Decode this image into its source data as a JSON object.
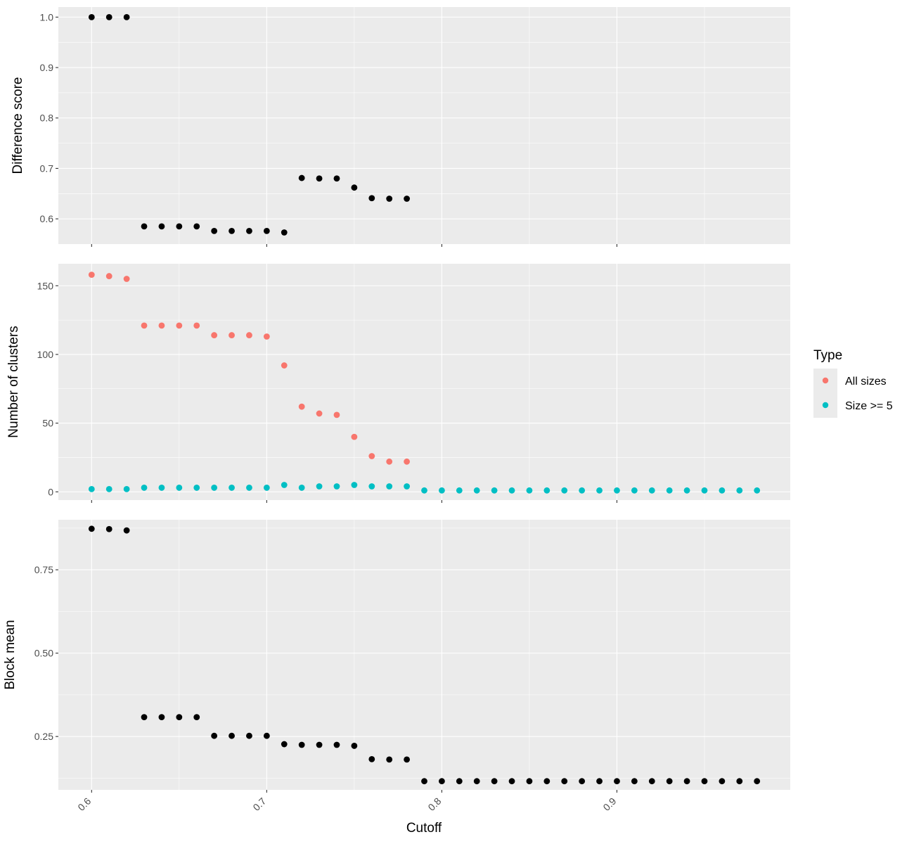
{
  "chart_data": [
    {
      "type": "scatter",
      "panel": "top",
      "ylabel": "Difference score",
      "ylim": [
        0.55,
        1.02
      ],
      "yticks": [
        "0.6",
        "0.7",
        "0.8",
        "0.9",
        "1.0"
      ],
      "grid": true,
      "series": [
        {
          "color": "#000000",
          "x": [
            0.6,
            0.61,
            0.62,
            0.63,
            0.64,
            0.65,
            0.66,
            0.67,
            0.68,
            0.69,
            0.7,
            0.71,
            0.72,
            0.73,
            0.74,
            0.75,
            0.76,
            0.77,
            0.78
          ],
          "y": [
            1.0,
            1.0,
            1.0,
            0.585,
            0.585,
            0.585,
            0.585,
            0.576,
            0.576,
            0.576,
            0.576,
            0.573,
            0.681,
            0.68,
            0.68,
            0.662,
            0.641,
            0.64,
            0.64
          ]
        }
      ]
    },
    {
      "type": "scatter",
      "panel": "middle",
      "ylabel": "Number of clusters",
      "ylim": [
        -6,
        166
      ],
      "yticks": [
        "0",
        "50",
        "100",
        "150"
      ],
      "grid": true,
      "series": [
        {
          "name": "All sizes",
          "color": "#F8766D",
          "x": [
            0.6,
            0.61,
            0.62,
            0.63,
            0.64,
            0.65,
            0.66,
            0.67,
            0.68,
            0.69,
            0.7,
            0.71,
            0.72,
            0.73,
            0.74,
            0.75,
            0.76,
            0.77,
            0.78
          ],
          "y": [
            158,
            157,
            155,
            121,
            121,
            121,
            121,
            114,
            114,
            114,
            113,
            92,
            62,
            57,
            56,
            40,
            26,
            22,
            22
          ]
        },
        {
          "name": "Size >= 5",
          "color": "#00BFC4",
          "x": [
            0.6,
            0.61,
            0.62,
            0.63,
            0.64,
            0.65,
            0.66,
            0.67,
            0.68,
            0.69,
            0.7,
            0.71,
            0.72,
            0.73,
            0.74,
            0.75,
            0.76,
            0.77,
            0.78,
            0.79,
            0.8,
            0.81,
            0.82,
            0.83,
            0.84,
            0.85,
            0.86,
            0.87,
            0.88,
            0.89,
            0.9,
            0.91,
            0.92,
            0.93,
            0.94,
            0.95,
            0.96,
            0.97,
            0.98
          ],
          "y": [
            2,
            2,
            2,
            3,
            3,
            3,
            3,
            3,
            3,
            3,
            3,
            5,
            3,
            4,
            4,
            5,
            4,
            4,
            4,
            1,
            1,
            1,
            1,
            1,
            1,
            1,
            1,
            1,
            1,
            1,
            1,
            1,
            1,
            1,
            1,
            1,
            1,
            1,
            1
          ]
        }
      ]
    },
    {
      "type": "scatter",
      "panel": "bottom",
      "ylabel": "Block mean",
      "xlabel": "Cutoff",
      "ylim": [
        0.09,
        0.9
      ],
      "xlim": [
        0.581,
        0.999
      ],
      "xticks": [
        "0.6",
        "0.7",
        "0.8",
        "0.9"
      ],
      "yticks": [
        "0.25",
        "0.50",
        "0.75"
      ],
      "grid": true,
      "series": [
        {
          "color": "#000000",
          "x": [
            0.6,
            0.61,
            0.62,
            0.63,
            0.64,
            0.65,
            0.66,
            0.67,
            0.68,
            0.69,
            0.7,
            0.71,
            0.72,
            0.73,
            0.74,
            0.75,
            0.76,
            0.77,
            0.78,
            0.79,
            0.8,
            0.81,
            0.82,
            0.83,
            0.84,
            0.85,
            0.86,
            0.87,
            0.88,
            0.89,
            0.9,
            0.91,
            0.92,
            0.93,
            0.94,
            0.95,
            0.96,
            0.97,
            0.98
          ],
          "y": [
            0.873,
            0.872,
            0.868,
            0.308,
            0.308,
            0.308,
            0.308,
            0.252,
            0.252,
            0.252,
            0.252,
            0.227,
            0.225,
            0.225,
            0.225,
            0.222,
            0.182,
            0.181,
            0.181,
            0.116,
            0.116,
            0.116,
            0.116,
            0.116,
            0.116,
            0.116,
            0.116,
            0.116,
            0.116,
            0.116,
            0.116,
            0.116,
            0.116,
            0.116,
            0.116,
            0.116,
            0.116,
            0.116,
            0.116
          ]
        }
      ]
    }
  ],
  "legend": {
    "title": "Type",
    "placement": "right",
    "items": [
      {
        "label": "All sizes",
        "color": "#F8766D"
      },
      {
        "label": "Size >= 5",
        "color": "#00BFC4"
      }
    ]
  },
  "colors": {
    "panel_background": "#EBEBEB",
    "grid_major": "#FFFFFF",
    "tick": "#333333"
  }
}
